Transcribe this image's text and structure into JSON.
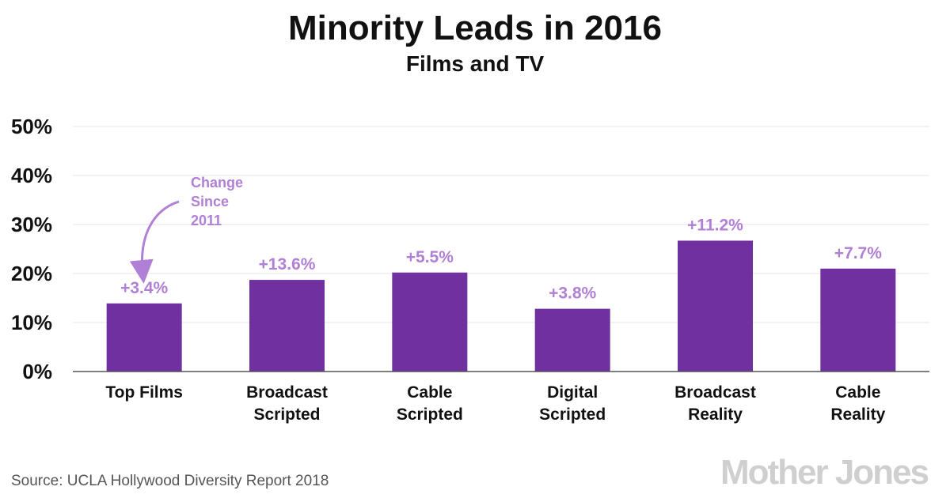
{
  "colors": {
    "bar": "#7030a0",
    "label": "#b07fd6",
    "grid": "#e6e6e6",
    "axis": "#555555",
    "logo": "#cfcfcf"
  },
  "chart_data": {
    "type": "bar",
    "title": "Minority Leads in 2016",
    "subtitle": "Films and TV",
    "categories": [
      [
        "Top Films"
      ],
      [
        "Broadcast",
        "Scripted"
      ],
      [
        "Cable",
        "Scripted"
      ],
      [
        "Digital",
        "Scripted"
      ],
      [
        "Broadcast",
        "Reality"
      ],
      [
        "Cable",
        "Reality"
      ]
    ],
    "values": [
      13.9,
      18.7,
      20.2,
      12.8,
      26.7,
      21.0
    ],
    "data_labels": [
      "+3.4%",
      "+13.6%",
      "+5.5%",
      "+3.8%",
      "+11.2%",
      "+7.7%"
    ],
    "yticks": [
      "0%",
      "10%",
      "20%",
      "30%",
      "40%",
      "50%"
    ],
    "ylim": [
      0,
      50
    ],
    "grid": true,
    "annotation": {
      "lines": [
        "Change",
        "Since",
        "2011"
      ],
      "target_category": 0
    },
    "source": "Source: UCLA Hollywood Diversity Report 2018",
    "logo": "Mother Jones"
  }
}
